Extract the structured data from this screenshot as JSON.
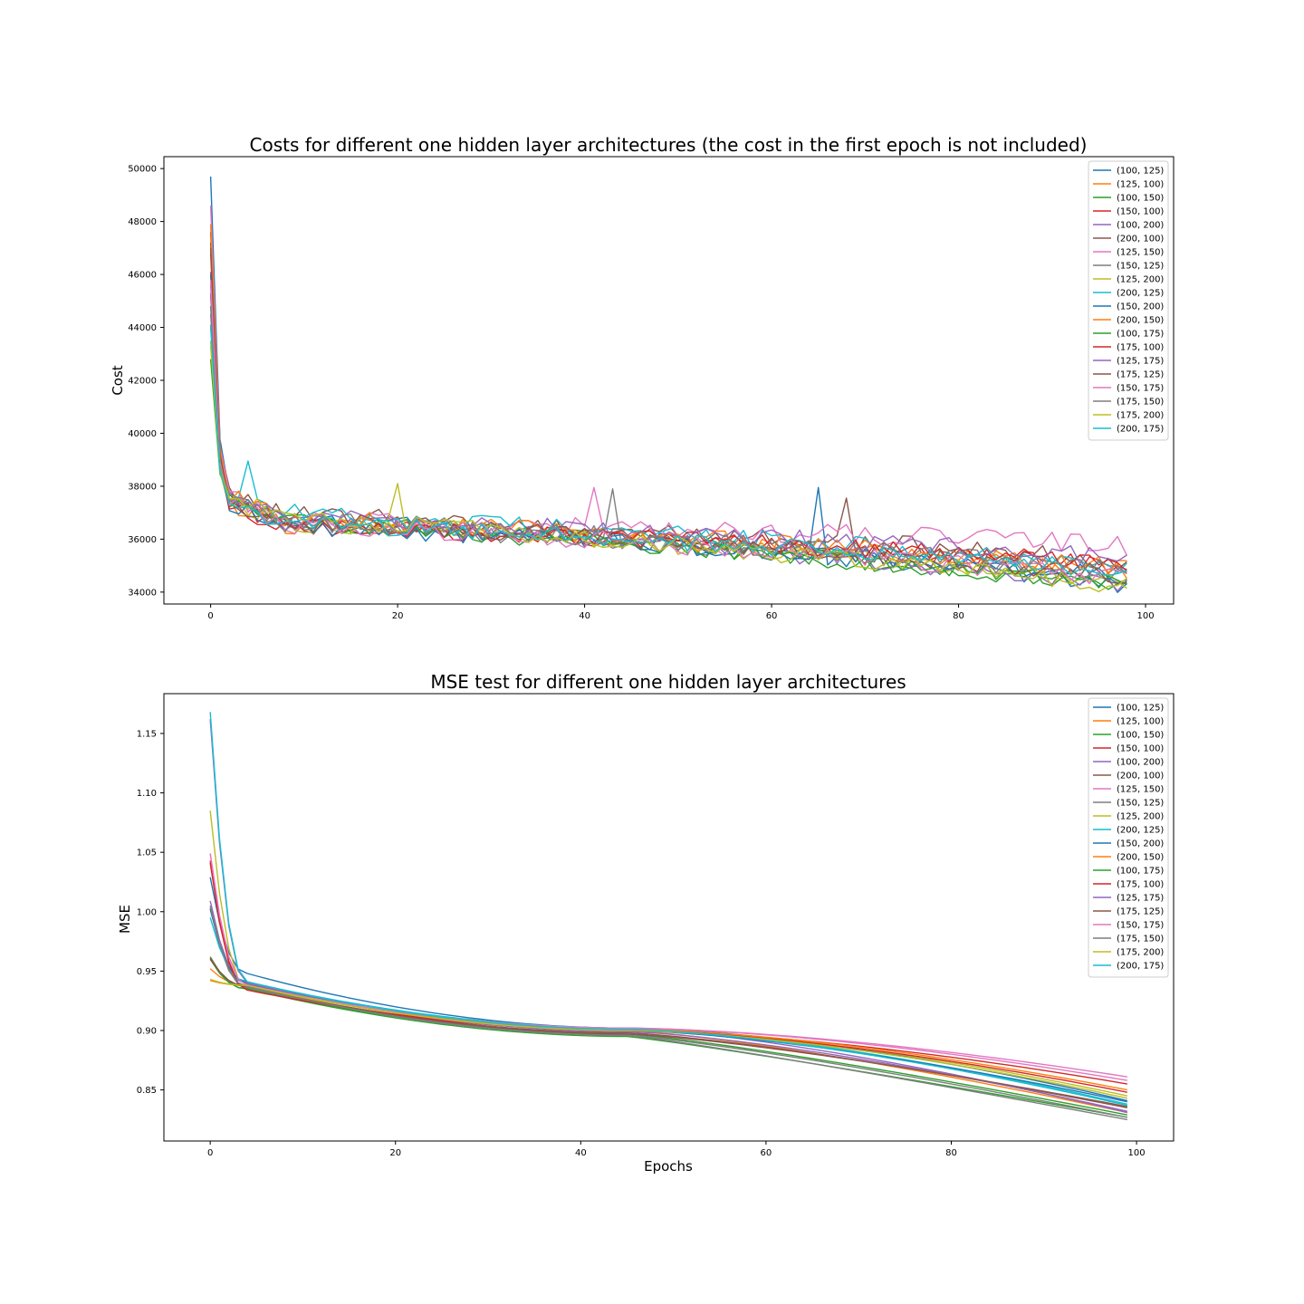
{
  "figure": {
    "charts_note_empty": ""
  },
  "chart_data": [
    {
      "type": "line",
      "title": "Costs for different one hidden layer architectures (the cost in the first epoch is not included)",
      "xlabel": "",
      "ylabel": "Cost",
      "xlim": [
        -5,
        103
      ],
      "ylim": [
        33550,
        50450
      ],
      "xticks": [
        0,
        20,
        40,
        60,
        80,
        100
      ],
      "yticks": [
        34000,
        36000,
        38000,
        40000,
        42000,
        44000,
        46000,
        48000,
        50000
      ],
      "x_count": 99,
      "legend": "top-right",
      "grid": false,
      "series": [
        {
          "name": "(100, 125)",
          "color": "#1f77b4",
          "start": 49700,
          "end": 34300,
          "plateau": 37600,
          "noise": 350
        },
        {
          "name": "(125, 100)",
          "color": "#ff7f0e",
          "start": 45200,
          "end": 34800,
          "plateau": 37400,
          "noise": 380
        },
        {
          "name": "(100, 150)",
          "color": "#2ca02c",
          "start": 42800,
          "end": 34200,
          "plateau": 37500,
          "noise": 340
        },
        {
          "name": "(150, 100)",
          "color": "#d62728",
          "start": 47600,
          "end": 35000,
          "plateau": 37300,
          "noise": 330
        },
        {
          "name": "(100, 200)",
          "color": "#9467bd",
          "start": 46100,
          "end": 34200,
          "plateau": 37600,
          "noise": 360
        },
        {
          "name": "(200, 100)",
          "color": "#8c564b",
          "start": 47200,
          "end": 35200,
          "plateau": 37700,
          "noise": 390
        },
        {
          "name": "(125, 150)",
          "color": "#e377c2",
          "start": 48600,
          "end": 35800,
          "plateau": 37500,
          "noise": 420
        },
        {
          "name": "(150, 125)",
          "color": "#7f7f7f",
          "start": 45600,
          "end": 34700,
          "plateau": 37400,
          "noise": 400
        },
        {
          "name": "(125, 200)",
          "color": "#bcbd22",
          "start": 43300,
          "end": 34400,
          "plateau": 37500,
          "noise": 380
        },
        {
          "name": "(200, 125)",
          "color": "#17becf",
          "start": 44100,
          "end": 34900,
          "plateau": 37800,
          "noise": 400
        },
        {
          "name": "(150, 200)",
          "color": "#1f77b4",
          "start": 46000,
          "end": 34600,
          "plateau": 37300,
          "noise": 340
        },
        {
          "name": "(200, 150)",
          "color": "#ff7f0e",
          "start": 47900,
          "end": 34900,
          "plateau": 37600,
          "noise": 360
        },
        {
          "name": "(100, 175)",
          "color": "#2ca02c",
          "start": 44800,
          "end": 34300,
          "plateau": 37400,
          "noise": 330
        },
        {
          "name": "(175, 100)",
          "color": "#d62728",
          "start": 46800,
          "end": 35100,
          "plateau": 37300,
          "noise": 350
        },
        {
          "name": "(125, 175)",
          "color": "#9467bd",
          "start": 45300,
          "end": 35300,
          "plateau": 37600,
          "noise": 370
        },
        {
          "name": "(175, 125)",
          "color": "#8c564b",
          "start": 47000,
          "end": 34600,
          "plateau": 37500,
          "noise": 380
        },
        {
          "name": "(150, 175)",
          "color": "#e377c2",
          "start": 45800,
          "end": 34500,
          "plateau": 37400,
          "noise": 360
        },
        {
          "name": "(175, 150)",
          "color": "#7f7f7f",
          "start": 44500,
          "end": 34800,
          "plateau": 37500,
          "noise": 390
        },
        {
          "name": "(175, 200)",
          "color": "#bcbd22",
          "start": 43500,
          "end": 34200,
          "plateau": 37600,
          "noise": 370
        },
        {
          "name": "(200, 175)",
          "color": "#17becf",
          "start": 44000,
          "end": 34800,
          "plateau": 37400,
          "noise": 360
        }
      ],
      "annotations_spikes": [
        {
          "series": "(100, 125)",
          "x": 65,
          "y": 37950
        },
        {
          "series": "(200, 100)",
          "x": 68,
          "y": 37550
        },
        {
          "series": "(125, 150)",
          "x": 41,
          "y": 37950
        },
        {
          "series": "(150, 125)",
          "x": 43,
          "y": 37900
        },
        {
          "series": "(125, 200)",
          "x": 20,
          "y": 38100
        },
        {
          "series": "(200, 125)",
          "x": 4,
          "y": 38950
        }
      ]
    },
    {
      "type": "line",
      "title": "MSE test for different one hidden layer architectures",
      "xlabel": "Epochs",
      "ylabel": "MSE",
      "xlim": [
        -5,
        104
      ],
      "ylim": [
        0.807,
        1.1835
      ],
      "xticks": [
        0,
        20,
        40,
        60,
        80,
        100
      ],
      "yticks": [
        0.85,
        0.9,
        0.95,
        1.0,
        1.05,
        1.1,
        1.15
      ],
      "ytick_labels": [
        "0.85",
        "0.90",
        "0.95",
        "1.00",
        "1.05",
        "1.10",
        "1.15"
      ],
      "x_count": 100,
      "legend": "top-right",
      "grid": false,
      "series": [
        {
          "name": "(100, 125)",
          "color": "#1f77b4",
          "start": 1.029,
          "end": 0.841,
          "plateau": 0.948,
          "mid": 0.902,
          "lateDrop": 0.5
        },
        {
          "name": "(125, 100)",
          "color": "#ff7f0e",
          "start": 0.952,
          "end": 0.831,
          "plateau": 0.938,
          "mid": 0.9,
          "lateDrop": 0.8
        },
        {
          "name": "(100, 150)",
          "color": "#2ca02c",
          "start": 0.96,
          "end": 0.827,
          "plateau": 0.935,
          "mid": 0.895,
          "lateDrop": 1.0
        },
        {
          "name": "(150, 100)",
          "color": "#d62728",
          "start": 1.043,
          "end": 0.855,
          "plateau": 0.935,
          "mid": 0.9,
          "lateDrop": 0.3
        },
        {
          "name": "(100, 200)",
          "color": "#9467bd",
          "start": 1.009,
          "end": 0.831,
          "plateau": 0.939,
          "mid": 0.902,
          "lateDrop": 0.7
        },
        {
          "name": "(200, 100)",
          "color": "#8c564b",
          "start": 0.96,
          "end": 0.835,
          "plateau": 0.937,
          "mid": 0.898,
          "lateDrop": 0.8
        },
        {
          "name": "(125, 150)",
          "color": "#e377c2",
          "start": 1.049,
          "end": 0.861,
          "plateau": 0.938,
          "mid": 0.902,
          "lateDrop": 0.2
        },
        {
          "name": "(150, 125)",
          "color": "#7f7f7f",
          "start": 1.003,
          "end": 0.825,
          "plateau": 0.936,
          "mid": 0.896,
          "lateDrop": 1.0
        },
        {
          "name": "(125, 200)",
          "color": "#bcbd22",
          "start": 1.085,
          "end": 0.845,
          "plateau": 0.937,
          "mid": 0.901,
          "lateDrop": 0.5
        },
        {
          "name": "(200, 125)",
          "color": "#17becf",
          "start": 0.995,
          "end": 0.838,
          "plateau": 0.941,
          "mid": 0.902,
          "lateDrop": 0.6
        },
        {
          "name": "(150, 200)",
          "color": "#1f77b4",
          "start": 1.002,
          "end": 0.84,
          "plateau": 0.94,
          "mid": 0.9,
          "lateDrop": 0.6
        },
        {
          "name": "(200, 150)",
          "color": "#ff7f0e",
          "start": 0.942,
          "end": 0.85,
          "plateau": 0.938,
          "mid": 0.901,
          "lateDrop": 0.3
        },
        {
          "name": "(100, 175)",
          "color": "#2ca02c",
          "start": 0.962,
          "end": 0.829,
          "plateau": 0.935,
          "mid": 0.897,
          "lateDrop": 0.9
        },
        {
          "name": "(175, 100)",
          "color": "#d62728",
          "start": 1.041,
          "end": 0.848,
          "plateau": 0.934,
          "mid": 0.9,
          "lateDrop": 0.4
        },
        {
          "name": "(125, 175)",
          "color": "#9467bd",
          "start": 1.162,
          "end": 0.832,
          "plateau": 0.94,
          "mid": 0.899,
          "lateDrop": 0.7
        },
        {
          "name": "(175, 125)",
          "color": "#8c564b",
          "start": 0.961,
          "end": 0.836,
          "plateau": 0.937,
          "mid": 0.897,
          "lateDrop": 0.8
        },
        {
          "name": "(150, 175)",
          "color": "#e377c2",
          "start": 1.049,
          "end": 0.858,
          "plateau": 0.938,
          "mid": 0.902,
          "lateDrop": 0.25
        },
        {
          "name": "(175, 150)",
          "color": "#7f7f7f",
          "start": 1.005,
          "end": 0.827,
          "plateau": 0.937,
          "mid": 0.896,
          "lateDrop": 0.9
        },
        {
          "name": "(175, 200)",
          "color": "#bcbd22",
          "start": 0.943,
          "end": 0.843,
          "plateau": 0.938,
          "mid": 0.9,
          "lateDrop": 0.55
        },
        {
          "name": "(200, 175)",
          "color": "#17becf",
          "start": 1.168,
          "end": 0.837,
          "plateau": 0.941,
          "mid": 0.901,
          "lateDrop": 0.6
        }
      ]
    }
  ]
}
